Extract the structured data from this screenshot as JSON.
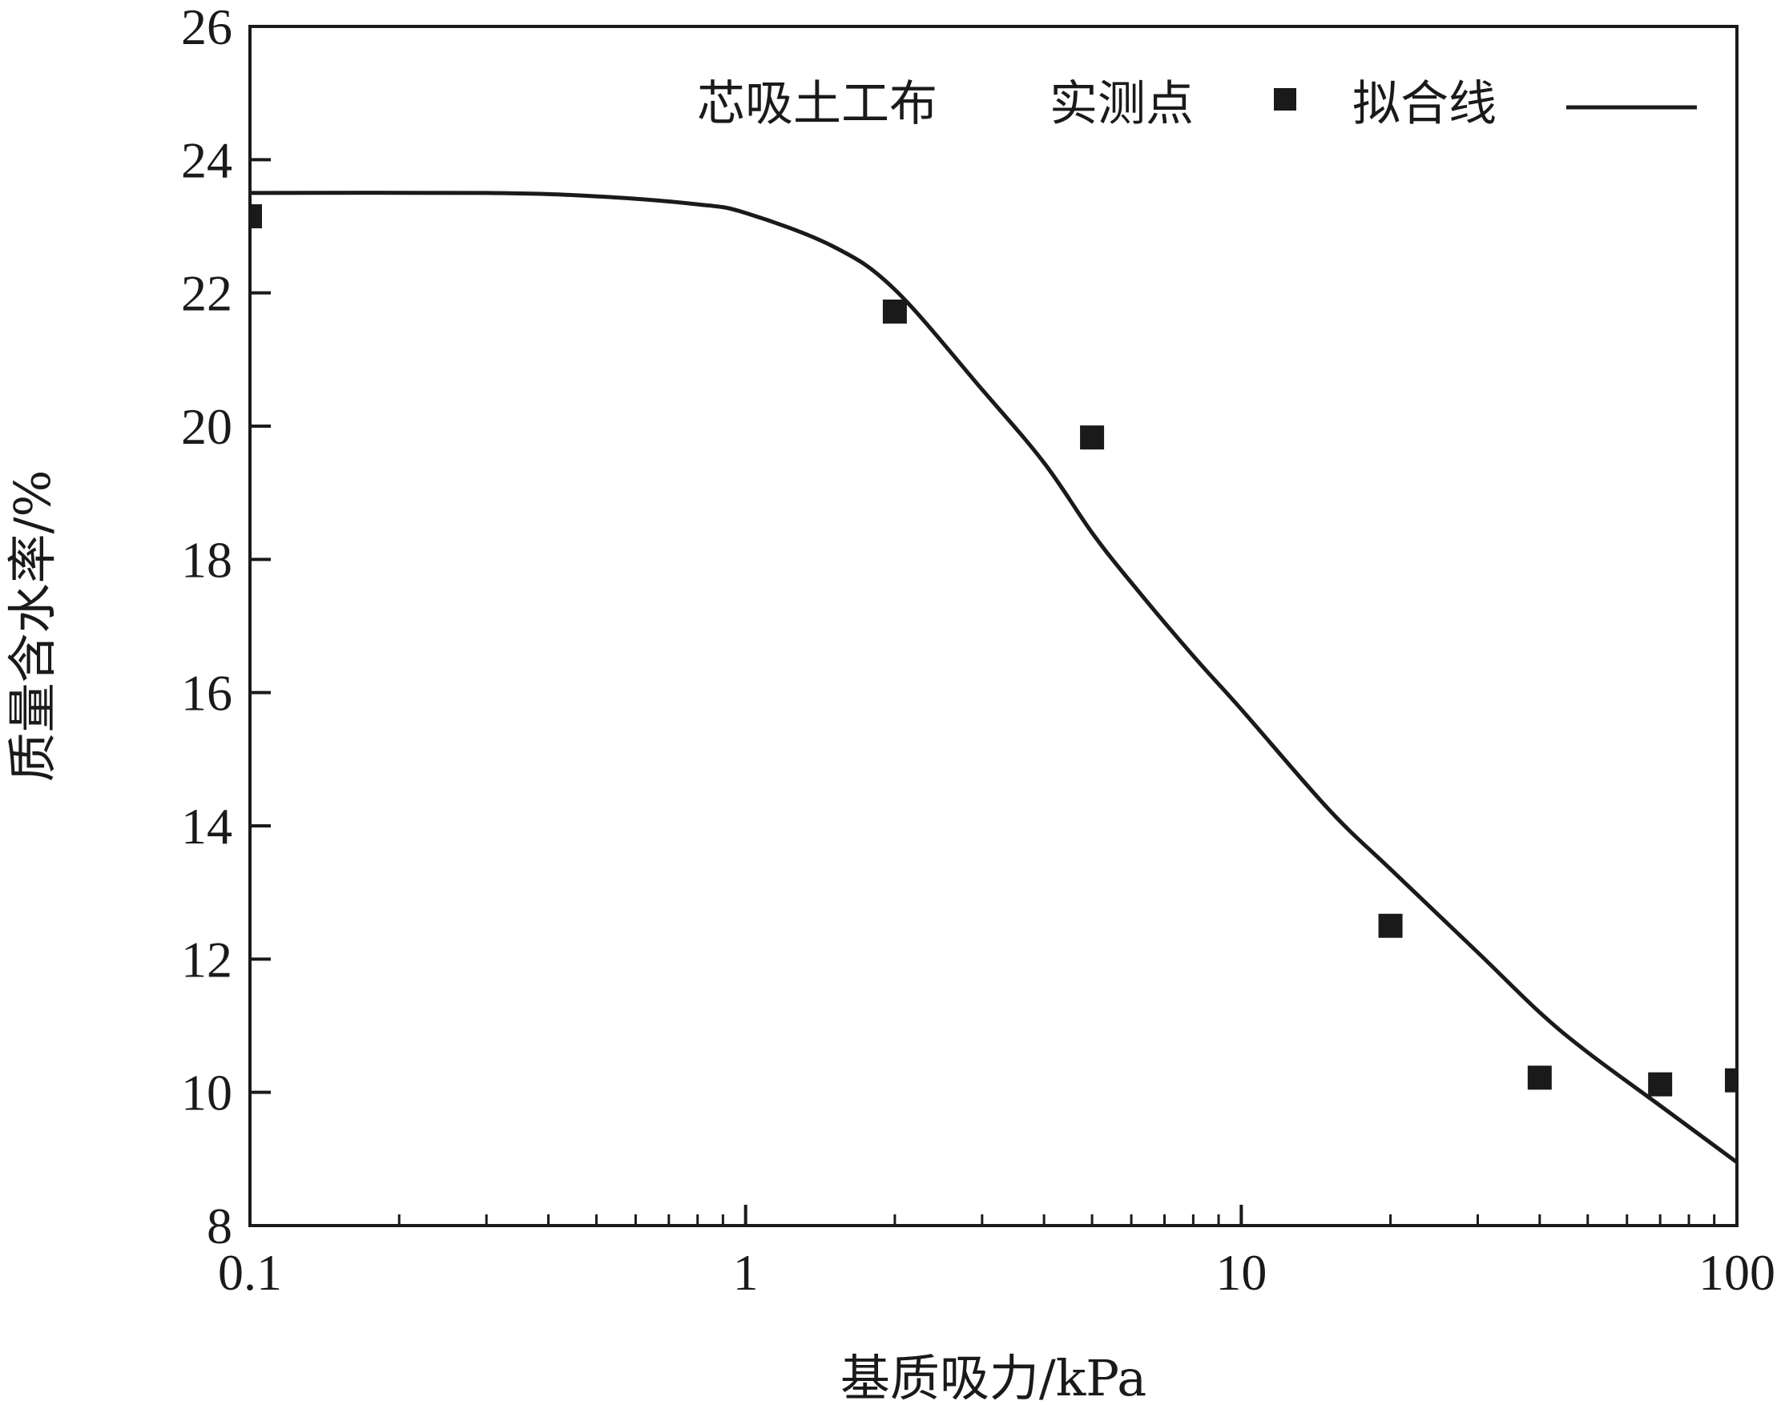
{
  "chart_data": {
    "type": "scatter",
    "xscale": "log",
    "xlim": [
      0.1,
      100
    ],
    "ylim": [
      8,
      26
    ],
    "xticks": [
      0.1,
      1,
      10,
      100
    ],
    "xtick_labels": [
      "0.1",
      "1",
      "10",
      "100"
    ],
    "yticks": [
      8,
      10,
      12,
      14,
      16,
      18,
      20,
      22,
      24,
      26
    ],
    "ytick_labels": [
      "8",
      "10",
      "12",
      "14",
      "16",
      "18",
      "20",
      "22",
      "24",
      "26"
    ],
    "xlabel": "基质吸力/kPa",
    "ylabel": "质量含水率/%",
    "legend_prefix": "芯吸土工布",
    "legend_position": "top-right",
    "grid": false,
    "series": [
      {
        "name": "实测点",
        "kind": "points",
        "marker": "square",
        "color": "#1a1a1a",
        "x": [
          0.1,
          2,
          5,
          20,
          40,
          70,
          100
        ],
        "y": [
          23.15,
          21.72,
          19.83,
          12.5,
          10.22,
          10.12,
          10.18
        ]
      },
      {
        "name": "拟合线",
        "kind": "line",
        "color": "#1a1a1a",
        "x": [
          0.1,
          0.3,
          0.5,
          0.8,
          1,
          1.5,
          2,
          3,
          4,
          5,
          6,
          8,
          10,
          15,
          20,
          30,
          40,
          50,
          70,
          100
        ],
        "y": [
          23.5,
          23.5,
          23.45,
          23.33,
          23.2,
          22.7,
          22.05,
          20.55,
          19.45,
          18.4,
          17.65,
          16.55,
          15.75,
          14.25,
          13.35,
          12.1,
          11.2,
          10.6,
          9.8,
          8.95
        ]
      }
    ]
  }
}
